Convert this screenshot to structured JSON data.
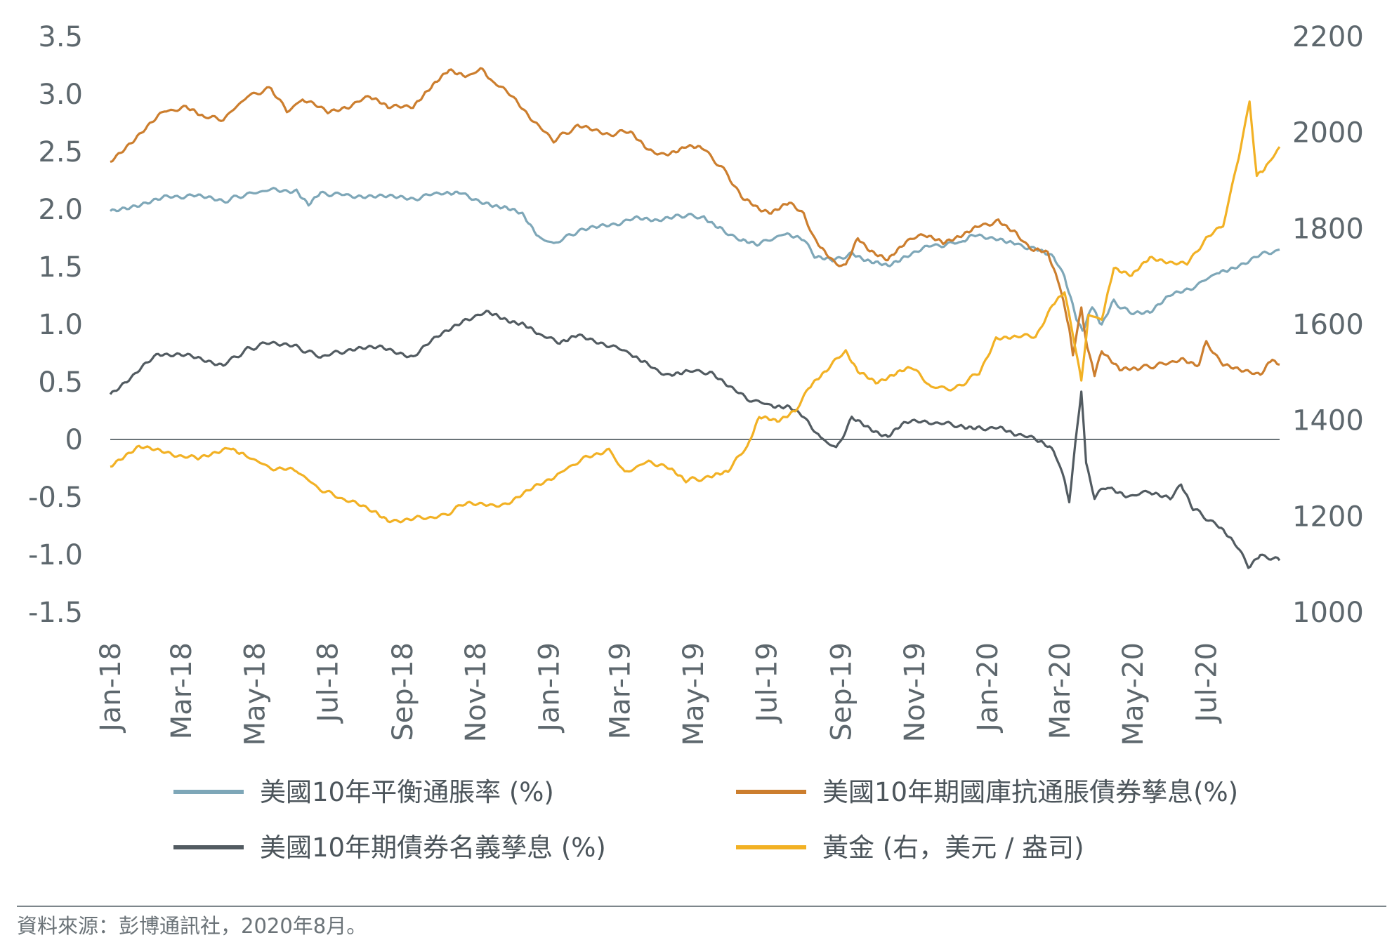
{
  "chart_data": {
    "type": "line",
    "x_start": "2018-01-01",
    "x_end": "2020-08-31",
    "x_ticks": [
      "Jan-18",
      "Mar-18",
      "May-18",
      "Jul-18",
      "Sep-18",
      "Nov-18",
      "Jan-19",
      "Mar-19",
      "May-19",
      "Jul-19",
      "Sep-19",
      "Nov-19",
      "Jan-20",
      "Mar-20",
      "May-20",
      "Jul-20"
    ],
    "y_left": {
      "range": [
        -1.5,
        3.5
      ],
      "ticks": [
        "3.5",
        "3.0",
        "2.5",
        "2.0",
        "1.5",
        "1.0",
        "0.5",
        "0",
        "-0.5",
        "-1.0",
        "-1.5"
      ]
    },
    "y_right": {
      "range": [
        1000,
        2200
      ],
      "ticks": [
        "2200",
        "2000",
        "1800",
        "1600",
        "1400",
        "1200",
        "1000"
      ]
    },
    "zero_line": true,
    "grid": false,
    "legend_position": "bottom",
    "series": [
      {
        "name": "美國10年平衡通脹率 (%)",
        "axis": "left",
        "color": "#7ea7b8",
        "points": [
          [
            "2018-01-01",
            1.98
          ],
          [
            "2018-01-20",
            2.03
          ],
          [
            "2018-02-15",
            2.1
          ],
          [
            "2018-03-10",
            2.12
          ],
          [
            "2018-04-05",
            2.07
          ],
          [
            "2018-04-25",
            2.13
          ],
          [
            "2018-05-15",
            2.17
          ],
          [
            "2018-06-05",
            2.16
          ],
          [
            "2018-06-15",
            2.05
          ],
          [
            "2018-06-25",
            2.14
          ],
          [
            "2018-07-20",
            2.12
          ],
          [
            "2018-08-15",
            2.11
          ],
          [
            "2018-09-10",
            2.09
          ],
          [
            "2018-10-05",
            2.15
          ],
          [
            "2018-10-20",
            2.14
          ],
          [
            "2018-11-10",
            2.05
          ],
          [
            "2018-11-25",
            2.02
          ],
          [
            "2018-12-10",
            1.95
          ],
          [
            "2018-12-25",
            1.75
          ],
          [
            "2019-01-05",
            1.7
          ],
          [
            "2019-01-25",
            1.81
          ],
          [
            "2019-02-20",
            1.86
          ],
          [
            "2019-03-15",
            1.92
          ],
          [
            "2019-04-01",
            1.89
          ],
          [
            "2019-04-20",
            1.95
          ],
          [
            "2019-05-10",
            1.93
          ],
          [
            "2019-05-25",
            1.83
          ],
          [
            "2019-06-10",
            1.72
          ],
          [
            "2019-06-25",
            1.7
          ],
          [
            "2019-07-15",
            1.78
          ],
          [
            "2019-08-01",
            1.73
          ],
          [
            "2019-08-10",
            1.6
          ],
          [
            "2019-08-25",
            1.55
          ],
          [
            "2019-09-10",
            1.62
          ],
          [
            "2019-09-25",
            1.55
          ],
          [
            "2019-10-10",
            1.5
          ],
          [
            "2019-10-25",
            1.6
          ],
          [
            "2019-11-15",
            1.68
          ],
          [
            "2019-12-10",
            1.71
          ],
          [
            "2019-12-20",
            1.77
          ],
          [
            "2020-01-10",
            1.75
          ],
          [
            "2020-01-25",
            1.7
          ],
          [
            "2020-02-10",
            1.65
          ],
          [
            "2020-02-25",
            1.6
          ],
          [
            "2020-03-05",
            1.4
          ],
          [
            "2020-03-15",
            1.05
          ],
          [
            "2020-03-20",
            0.95
          ],
          [
            "2020-03-28",
            1.15
          ],
          [
            "2020-04-05",
            1.0
          ],
          [
            "2020-04-15",
            1.2
          ],
          [
            "2020-04-28",
            1.1
          ],
          [
            "2020-05-15",
            1.1
          ],
          [
            "2020-06-01",
            1.25
          ],
          [
            "2020-06-20",
            1.32
          ],
          [
            "2020-07-10",
            1.45
          ],
          [
            "2020-07-25",
            1.5
          ],
          [
            "2020-08-15",
            1.6
          ],
          [
            "2020-08-31",
            1.65
          ]
        ]
      },
      {
        "name": "美國10年期國庫抗通脹債券孳息(%)",
        "axis": "left",
        "color": "#cc7e2e",
        "points": [
          [
            "2018-01-01",
            2.42
          ],
          [
            "2018-01-20",
            2.6
          ],
          [
            "2018-02-15",
            2.85
          ],
          [
            "2018-03-05",
            2.88
          ],
          [
            "2018-03-20",
            2.8
          ],
          [
            "2018-04-05",
            2.78
          ],
          [
            "2018-04-25",
            2.98
          ],
          [
            "2018-05-15",
            3.05
          ],
          [
            "2018-05-28",
            2.85
          ],
          [
            "2018-06-10",
            2.95
          ],
          [
            "2018-07-01",
            2.85
          ],
          [
            "2018-07-20",
            2.9
          ],
          [
            "2018-08-05",
            2.98
          ],
          [
            "2018-08-20",
            2.88
          ],
          [
            "2018-09-10",
            2.9
          ],
          [
            "2018-09-25",
            3.05
          ],
          [
            "2018-10-10",
            3.22
          ],
          [
            "2018-10-25",
            3.15
          ],
          [
            "2018-11-05",
            3.22
          ],
          [
            "2018-11-15",
            3.1
          ],
          [
            "2018-12-01",
            3.0
          ],
          [
            "2018-12-20",
            2.75
          ],
          [
            "2019-01-05",
            2.6
          ],
          [
            "2019-01-25",
            2.72
          ],
          [
            "2019-02-20",
            2.65
          ],
          [
            "2019-03-10",
            2.68
          ],
          [
            "2019-03-25",
            2.5
          ],
          [
            "2019-04-10",
            2.48
          ],
          [
            "2019-04-25",
            2.55
          ],
          [
            "2019-05-10",
            2.52
          ],
          [
            "2019-05-30",
            2.3
          ],
          [
            "2019-06-10",
            2.1
          ],
          [
            "2019-06-25",
            2.0
          ],
          [
            "2019-07-05",
            1.98
          ],
          [
            "2019-07-20",
            2.05
          ],
          [
            "2019-08-01",
            1.95
          ],
          [
            "2019-08-10",
            1.75
          ],
          [
            "2019-08-25",
            1.55
          ],
          [
            "2019-09-05",
            1.5
          ],
          [
            "2019-09-15",
            1.75
          ],
          [
            "2019-09-25",
            1.65
          ],
          [
            "2019-10-10",
            1.55
          ],
          [
            "2019-10-25",
            1.72
          ],
          [
            "2019-11-10",
            1.78
          ],
          [
            "2019-11-25",
            1.7
          ],
          [
            "2019-12-10",
            1.78
          ],
          [
            "2019-12-25",
            1.85
          ],
          [
            "2020-01-10",
            1.9
          ],
          [
            "2020-01-25",
            1.8
          ],
          [
            "2020-02-05",
            1.65
          ],
          [
            "2020-02-20",
            1.62
          ],
          [
            "2020-03-01",
            1.35
          ],
          [
            "2020-03-09",
            0.95
          ],
          [
            "2020-03-12",
            0.75
          ],
          [
            "2020-03-19",
            1.15
          ],
          [
            "2020-03-24",
            0.8
          ],
          [
            "2020-03-30",
            0.55
          ],
          [
            "2020-04-05",
            0.78
          ],
          [
            "2020-04-20",
            0.6
          ],
          [
            "2020-05-05",
            0.62
          ],
          [
            "2020-05-25",
            0.65
          ],
          [
            "2020-06-10",
            0.7
          ],
          [
            "2020-06-25",
            0.65
          ],
          [
            "2020-07-01",
            0.85
          ],
          [
            "2020-07-15",
            0.65
          ],
          [
            "2020-08-01",
            0.6
          ],
          [
            "2020-08-15",
            0.55
          ],
          [
            "2020-08-25",
            0.7
          ],
          [
            "2020-08-31",
            0.65
          ]
        ]
      },
      {
        "name": "美國10年期債券名義孳息 (%)",
        "axis": "left",
        "color": "#525b61",
        "points": [
          [
            "2018-01-01",
            0.4
          ],
          [
            "2018-01-20",
            0.55
          ],
          [
            "2018-02-10",
            0.75
          ],
          [
            "2018-03-10",
            0.72
          ],
          [
            "2018-04-05",
            0.65
          ],
          [
            "2018-04-25",
            0.78
          ],
          [
            "2018-05-15",
            0.85
          ],
          [
            "2018-06-05",
            0.8
          ],
          [
            "2018-06-25",
            0.72
          ],
          [
            "2018-07-20",
            0.78
          ],
          [
            "2018-08-15",
            0.8
          ],
          [
            "2018-09-10",
            0.72
          ],
          [
            "2018-10-01",
            0.9
          ],
          [
            "2018-10-25",
            1.05
          ],
          [
            "2018-11-10",
            1.1
          ],
          [
            "2018-11-25",
            1.05
          ],
          [
            "2018-12-10",
            1.0
          ],
          [
            "2018-12-25",
            0.9
          ],
          [
            "2019-01-10",
            0.85
          ],
          [
            "2019-01-25",
            0.9
          ],
          [
            "2019-02-20",
            0.82
          ],
          [
            "2019-03-10",
            0.75
          ],
          [
            "2019-03-25",
            0.65
          ],
          [
            "2019-04-10",
            0.55
          ],
          [
            "2019-04-25",
            0.6
          ],
          [
            "2019-05-15",
            0.58
          ],
          [
            "2019-06-01",
            0.45
          ],
          [
            "2019-06-15",
            0.35
          ],
          [
            "2019-07-05",
            0.3
          ],
          [
            "2019-07-20",
            0.28
          ],
          [
            "2019-08-01",
            0.2
          ],
          [
            "2019-08-15",
            0.02
          ],
          [
            "2019-08-28",
            -0.08
          ],
          [
            "2019-09-10",
            0.18
          ],
          [
            "2019-09-25",
            0.1
          ],
          [
            "2019-10-10",
            0.02
          ],
          [
            "2019-10-25",
            0.15
          ],
          [
            "2019-11-15",
            0.15
          ],
          [
            "2019-12-10",
            0.12
          ],
          [
            "2019-12-25",
            0.1
          ],
          [
            "2020-01-10",
            0.1
          ],
          [
            "2020-01-25",
            0.05
          ],
          [
            "2020-02-10",
            0.0
          ],
          [
            "2020-02-25",
            -0.1
          ],
          [
            "2020-03-05",
            -0.35
          ],
          [
            "2020-03-09",
            -0.55
          ],
          [
            "2020-03-14",
            -0.05
          ],
          [
            "2020-03-19",
            0.42
          ],
          [
            "2020-03-23",
            -0.2
          ],
          [
            "2020-03-30",
            -0.5
          ],
          [
            "2020-04-10",
            -0.4
          ],
          [
            "2020-04-25",
            -0.5
          ],
          [
            "2020-05-15",
            -0.45
          ],
          [
            "2020-06-01",
            -0.5
          ],
          [
            "2020-06-10",
            -0.4
          ],
          [
            "2020-06-20",
            -0.6
          ],
          [
            "2020-07-10",
            -0.75
          ],
          [
            "2020-07-25",
            -0.9
          ],
          [
            "2020-08-05",
            -1.1
          ],
          [
            "2020-08-15",
            -1.0
          ],
          [
            "2020-08-31",
            -1.05
          ]
        ]
      },
      {
        "name": "黃金 (右，美元 / 盎司)",
        "axis": "right",
        "color": "#f2b124",
        "points": [
          [
            "2018-01-01",
            1305
          ],
          [
            "2018-01-25",
            1345
          ],
          [
            "2018-02-20",
            1330
          ],
          [
            "2018-03-15",
            1320
          ],
          [
            "2018-04-10",
            1345
          ],
          [
            "2018-04-25",
            1325
          ],
          [
            "2018-05-15",
            1300
          ],
          [
            "2018-06-05",
            1295
          ],
          [
            "2018-06-25",
            1255
          ],
          [
            "2018-07-20",
            1230
          ],
          [
            "2018-08-10",
            1210
          ],
          [
            "2018-08-20",
            1190
          ],
          [
            "2018-09-10",
            1195
          ],
          [
            "2018-10-05",
            1200
          ],
          [
            "2018-10-25",
            1230
          ],
          [
            "2018-11-15",
            1220
          ],
          [
            "2018-12-01",
            1230
          ],
          [
            "2018-12-20",
            1260
          ],
          [
            "2019-01-10",
            1290
          ],
          [
            "2019-01-30",
            1320
          ],
          [
            "2019-02-20",
            1340
          ],
          [
            "2019-03-05",
            1290
          ],
          [
            "2019-03-25",
            1315
          ],
          [
            "2019-04-10",
            1300
          ],
          [
            "2019-04-25",
            1275
          ],
          [
            "2019-05-15",
            1280
          ],
          [
            "2019-05-30",
            1295
          ],
          [
            "2019-06-15",
            1345
          ],
          [
            "2019-06-25",
            1405
          ],
          [
            "2019-07-10",
            1400
          ],
          [
            "2019-07-25",
            1420
          ],
          [
            "2019-08-05",
            1465
          ],
          [
            "2019-08-20",
            1505
          ],
          [
            "2019-09-05",
            1545
          ],
          [
            "2019-09-15",
            1500
          ],
          [
            "2019-09-30",
            1480
          ],
          [
            "2019-10-15",
            1495
          ],
          [
            "2019-10-30",
            1510
          ],
          [
            "2019-11-15",
            1470
          ],
          [
            "2019-12-05",
            1465
          ],
          [
            "2019-12-25",
            1500
          ],
          [
            "2020-01-08",
            1570
          ],
          [
            "2020-01-25",
            1575
          ],
          [
            "2020-02-10",
            1575
          ],
          [
            "2020-02-24",
            1640
          ],
          [
            "2020-03-05",
            1670
          ],
          [
            "2020-03-12",
            1580
          ],
          [
            "2020-03-19",
            1480
          ],
          [
            "2020-03-25",
            1620
          ],
          [
            "2020-04-05",
            1610
          ],
          [
            "2020-04-15",
            1720
          ],
          [
            "2020-04-30",
            1700
          ],
          [
            "2020-05-15",
            1740
          ],
          [
            "2020-06-01",
            1730
          ],
          [
            "2020-06-15",
            1725
          ],
          [
            "2020-07-01",
            1780
          ],
          [
            "2020-07-15",
            1805
          ],
          [
            "2020-07-28",
            1950
          ],
          [
            "2020-08-06",
            2065
          ],
          [
            "2020-08-12",
            1910
          ],
          [
            "2020-08-20",
            1930
          ],
          [
            "2020-08-31",
            1970
          ]
        ]
      }
    ],
    "legend": [
      {
        "label": "美國10年平衡通脹率 (%)",
        "color": "#7ea7b8"
      },
      {
        "label": "美國10年期國庫抗通脹債券孳息(%)",
        "color": "#cc7e2e"
      },
      {
        "label": "美國10年期債券名義孳息 (%)",
        "color": "#525b61"
      },
      {
        "label": "黃金 (右，美元 / 盎司)",
        "color": "#f2b124"
      }
    ]
  },
  "footer": {
    "source": "資料來源：彭博通訊社，2020年8月。"
  }
}
